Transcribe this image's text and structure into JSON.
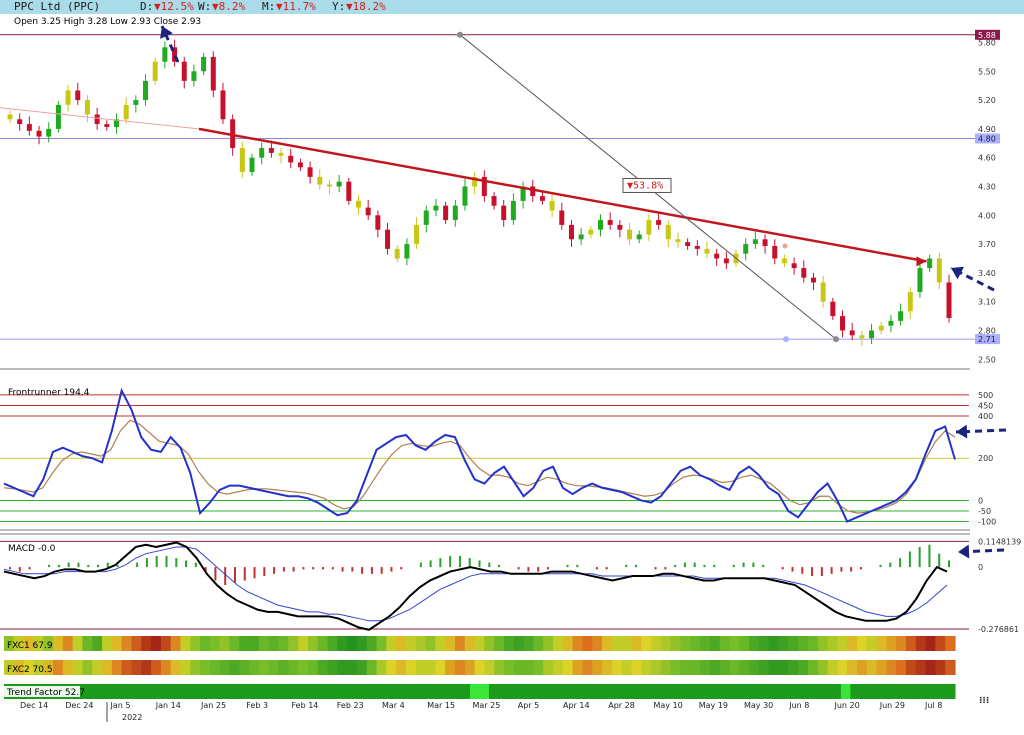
{
  "header": {
    "symbol": "PPC Ltd (PPC)",
    "day_label": "D:",
    "day_change": "▼12.5%",
    "week_label": "W:",
    "week_change": "▼8.2%",
    "month_label": "M:",
    "month_change": "▼11.7%",
    "year_label": "Y:",
    "year_change": "▼18.2%",
    "ohlc": "Open 3.25  High 3.28  Low 2.93  Close 2.93"
  },
  "colors": {
    "up": "#1faa1f",
    "down": "#c8102e",
    "neutral": "#c8c814",
    "trendline": "#c0161c",
    "blue_line": "#2232cc",
    "signal": "#b08050",
    "arrow": "#1a237e"
  },
  "chart_data": [
    {
      "type": "candlestick",
      "name": "price",
      "y_ticks": [
        2.5,
        2.8,
        3.1,
        3.4,
        3.7,
        4.0,
        4.3,
        4.6,
        4.9,
        5.2,
        5.5,
        5.8
      ],
      "ylim": [
        2.43,
        5.93
      ],
      "x_tick_labels": [
        "Dec 14",
        "Dec 24",
        "Jan 5",
        "Jan 14",
        "Jan 25",
        "Feb 3",
        "Feb 14",
        "Feb 23",
        "Mar 4",
        "Mar 15",
        "Mar 25",
        "Apr 5",
        "Apr 14",
        "Apr 28",
        "May 10",
        "May 19",
        "May 30",
        "Jun 8",
        "Jun 20",
        "Jun 29",
        "Jul 8"
      ],
      "year_label": "2022",
      "price_labels": [
        "5.88",
        "4.80",
        "2.71"
      ],
      "annotation": "▼53.8%",
      "close_path": [
        5.0,
        4.95,
        4.88,
        4.82,
        4.9,
        5.15,
        5.3,
        5.2,
        5.05,
        4.95,
        4.92,
        5.0,
        5.15,
        5.2,
        5.4,
        5.6,
        5.75,
        5.6,
        5.4,
        5.5,
        5.65,
        5.3,
        5.0,
        4.7,
        4.45,
        4.6,
        4.7,
        4.65,
        4.62,
        4.55,
        4.5,
        4.4,
        4.32,
        4.3,
        4.35,
        4.15,
        4.08,
        4.0,
        3.85,
        3.65,
        3.55,
        3.7,
        3.9,
        4.05,
        4.1,
        3.95,
        4.1,
        4.3,
        4.4,
        4.2,
        4.1,
        3.95,
        4.15,
        4.3,
        4.2,
        4.15,
        4.05,
        3.9,
        3.75,
        3.8,
        3.85,
        3.95,
        3.9,
        3.85,
        3.75,
        3.8,
        3.95,
        3.9,
        3.75,
        3.72,
        3.68,
        3.65,
        3.6,
        3.55,
        3.5,
        3.6,
        3.7,
        3.75,
        3.68,
        3.55,
        3.5,
        3.45,
        3.35,
        3.3,
        3.1,
        2.95,
        2.8,
        2.75,
        2.72,
        2.8,
        2.85,
        2.9,
        3.0,
        3.2,
        3.45,
        3.55,
        3.3,
        2.93
      ],
      "trendline": [
        [
          0.205,
          4.9
        ],
        [
          0.97,
          3.52
        ]
      ],
      "horizontal_levels": [
        5.88,
        4.8,
        2.71
      ]
    },
    {
      "type": "line",
      "name": "Frontrunner",
      "legend": "Frontrunner 194.4",
      "y_ticks": [
        500,
        450,
        400,
        200,
        0,
        -50,
        -100
      ],
      "ylim": [
        -140,
        580
      ],
      "series": [
        {
          "values": [
            80,
            60,
            40,
            20,
            100,
            230,
            250,
            230,
            210,
            200,
            180,
            330,
            520,
            430,
            300,
            240,
            230,
            300,
            250,
            130,
            -60,
            -10,
            50,
            70,
            70,
            60,
            50,
            40,
            30,
            20,
            20,
            10,
            -10,
            -40,
            -70,
            -60,
            0,
            120,
            240,
            270,
            300,
            310,
            260,
            240,
            280,
            310,
            300,
            190,
            100,
            80,
            130,
            160,
            90,
            20,
            60,
            140,
            160,
            60,
            30,
            60,
            80,
            60,
            50,
            40,
            20,
            0,
            -10,
            20,
            80,
            140,
            160,
            120,
            100,
            70,
            50,
            130,
            160,
            120,
            60,
            30,
            -50,
            -80,
            -20,
            40,
            80,
            0,
            -100,
            -80,
            -60,
            -40,
            -20,
            0,
            40,
            100,
            220,
            330,
            350,
            194
          ],
          "color": "#2232cc"
        },
        {
          "values": [
            60,
            55,
            48,
            40,
            60,
            130,
            190,
            220,
            230,
            220,
            210,
            240,
            330,
            380,
            360,
            320,
            280,
            270,
            260,
            220,
            140,
            80,
            40,
            30,
            40,
            50,
            55,
            55,
            50,
            45,
            40,
            35,
            25,
            10,
            -20,
            -40,
            -30,
            20,
            90,
            160,
            220,
            260,
            270,
            260,
            255,
            270,
            280,
            260,
            200,
            150,
            120,
            120,
            110,
            80,
            70,
            90,
            110,
            100,
            80,
            70,
            70,
            65,
            60,
            50,
            40,
            30,
            20,
            25,
            40,
            80,
            110,
            120,
            115,
            100,
            85,
            90,
            110,
            120,
            100,
            80,
            40,
            0,
            -20,
            -10,
            20,
            20,
            -20,
            -50,
            -60,
            -55,
            -45,
            -30,
            -10,
            30,
            100,
            200,
            280,
            330,
            300
          ],
          "color": "#b08050"
        }
      ],
      "horizontal_levels": [
        500,
        450,
        400,
        200,
        0,
        -50,
        -100
      ]
    },
    {
      "type": "bar",
      "name": "MACD",
      "legend": "MACD -0.0",
      "y_ticks": [
        0.1148139,
        0,
        -0.276861
      ],
      "y_tick_labels": [
        "0.1148139",
        "0",
        "-0.276861"
      ],
      "ylim": [
        -0.29,
        0.13
      ],
      "histogram": [
        -0.01,
        -0.02,
        -0.01,
        0.0,
        0.01,
        0.01,
        0.02,
        0.02,
        0.01,
        0.01,
        0.02,
        0.01,
        0.0,
        0.02,
        0.04,
        0.05,
        0.05,
        0.04,
        0.03,
        0.02,
        -0.02,
        -0.06,
        -0.08,
        -0.07,
        -0.06,
        -0.05,
        -0.04,
        -0.03,
        -0.02,
        -0.02,
        -0.01,
        -0.01,
        -0.01,
        -0.01,
        -0.02,
        -0.02,
        -0.03,
        -0.03,
        -0.03,
        -0.02,
        -0.01,
        0.0,
        0.02,
        0.03,
        0.04,
        0.05,
        0.05,
        0.04,
        0.03,
        0.02,
        0.01,
        0.0,
        -0.01,
        -0.02,
        -0.02,
        -0.01,
        0.0,
        0.01,
        0.01,
        0.0,
        -0.01,
        -0.01,
        0.0,
        0.01,
        0.01,
        0.0,
        -0.01,
        -0.01,
        0.01,
        0.02,
        0.02,
        0.01,
        0.01,
        0.0,
        0.01,
        0.02,
        0.02,
        0.01,
        0.0,
        -0.01,
        -0.02,
        -0.03,
        -0.04,
        -0.04,
        -0.03,
        -0.02,
        -0.02,
        -0.01,
        0.0,
        0.01,
        0.02,
        0.04,
        0.07,
        0.09,
        0.1,
        0.06,
        0.03
      ],
      "macd": [
        -0.02,
        -0.03,
        -0.04,
        -0.05,
        -0.04,
        -0.02,
        -0.01,
        -0.01,
        -0.02,
        -0.02,
        -0.01,
        0.01,
        0.05,
        0.09,
        0.1,
        0.09,
        0.1,
        0.11,
        0.09,
        0.04,
        -0.03,
        -0.08,
        -0.12,
        -0.15,
        -0.17,
        -0.19,
        -0.2,
        -0.2,
        -0.21,
        -0.22,
        -0.22,
        -0.22,
        -0.22,
        -0.23,
        -0.25,
        -0.27,
        -0.28,
        -0.25,
        -0.22,
        -0.18,
        -0.13,
        -0.09,
        -0.06,
        -0.04,
        -0.02,
        -0.01,
        0.0,
        -0.01,
        -0.02,
        -0.02,
        -0.03,
        -0.03,
        -0.03,
        -0.03,
        -0.02,
        -0.02,
        -0.02,
        -0.03,
        -0.04,
        -0.05,
        -0.06,
        -0.05,
        -0.04,
        -0.04,
        -0.04,
        -0.03,
        -0.03,
        -0.04,
        -0.05,
        -0.06,
        -0.06,
        -0.05,
        -0.05,
        -0.05,
        -0.05,
        -0.05,
        -0.06,
        -0.07,
        -0.08,
        -0.11,
        -0.14,
        -0.17,
        -0.2,
        -0.22,
        -0.23,
        -0.24,
        -0.24,
        -0.24,
        -0.23,
        -0.2,
        -0.14,
        -0.06,
        0.0,
        -0.02
      ],
      "signal": [
        -0.01,
        -0.02,
        -0.03,
        -0.03,
        -0.03,
        -0.03,
        -0.02,
        -0.02,
        -0.02,
        -0.02,
        -0.02,
        -0.01,
        0.01,
        0.04,
        0.06,
        0.07,
        0.08,
        0.09,
        0.09,
        0.08,
        0.04,
        0.0,
        -0.04,
        -0.08,
        -0.11,
        -0.13,
        -0.15,
        -0.17,
        -0.18,
        -0.19,
        -0.2,
        -0.2,
        -0.21,
        -0.21,
        -0.22,
        -0.23,
        -0.24,
        -0.24,
        -0.23,
        -0.21,
        -0.19,
        -0.16,
        -0.13,
        -0.1,
        -0.08,
        -0.06,
        -0.04,
        -0.03,
        -0.03,
        -0.03,
        -0.03,
        -0.03,
        -0.03,
        -0.03,
        -0.03,
        -0.03,
        -0.03,
        -0.03,
        -0.03,
        -0.04,
        -0.04,
        -0.04,
        -0.04,
        -0.04,
        -0.04,
        -0.04,
        -0.04,
        -0.04,
        -0.04,
        -0.05,
        -0.05,
        -0.05,
        -0.05,
        -0.05,
        -0.05,
        -0.05,
        -0.05,
        -0.06,
        -0.07,
        -0.08,
        -0.1,
        -0.12,
        -0.14,
        -0.16,
        -0.18,
        -0.2,
        -0.21,
        -0.22,
        -0.22,
        -0.21,
        -0.19,
        -0.16,
        -0.12,
        -0.08
      ]
    },
    {
      "type": "heatmap",
      "name": "FXC1",
      "legend": "FXC1 67.9",
      "values": [
        0.4,
        0.5,
        0.6,
        0.5,
        0.4,
        0.6,
        0.7,
        0.5,
        0.3,
        0.2,
        0.5,
        0.6,
        0.7,
        0.8,
        0.9,
        0.95,
        0.85,
        0.7,
        0.5,
        0.4,
        0.3,
        0.35,
        0.4,
        0.3,
        0.2,
        0.2,
        0.3,
        0.25,
        0.3,
        0.4,
        0.5,
        0.4,
        0.3,
        0.2,
        0.1,
        0.05,
        0.1,
        0.2,
        0.35,
        0.5,
        0.6,
        0.5,
        0.45,
        0.4,
        0.5,
        0.6,
        0.7,
        0.6,
        0.5,
        0.4,
        0.3,
        0.2,
        0.15,
        0.2,
        0.3,
        0.4,
        0.5,
        0.6,
        0.7,
        0.75,
        0.7,
        0.6,
        0.5,
        0.5,
        0.6,
        0.55,
        0.5,
        0.45,
        0.4,
        0.35,
        0.3,
        0.25,
        0.2,
        0.3,
        0.35,
        0.3,
        0.2,
        0.15,
        0.1,
        0.15,
        0.2,
        0.25,
        0.3,
        0.4,
        0.45,
        0.5,
        0.6,
        0.55,
        0.5,
        0.6,
        0.65,
        0.7,
        0.8,
        0.9,
        0.95,
        0.85,
        0.75
      ]
    },
    {
      "type": "heatmap",
      "name": "FXC2",
      "legend": "FXC2 70.5",
      "values": [
        0.5,
        0.6,
        0.55,
        0.5,
        0.6,
        0.7,
        0.6,
        0.5,
        0.4,
        0.5,
        0.6,
        0.7,
        0.8,
        0.85,
        0.9,
        0.8,
        0.7,
        0.6,
        0.5,
        0.4,
        0.35,
        0.3,
        0.25,
        0.2,
        0.25,
        0.3,
        0.35,
        0.3,
        0.25,
        0.3,
        0.35,
        0.3,
        0.2,
        0.15,
        0.1,
        0.1,
        0.15,
        0.3,
        0.45,
        0.55,
        0.6,
        0.55,
        0.5,
        0.5,
        0.55,
        0.65,
        0.7,
        0.65,
        0.55,
        0.5,
        0.4,
        0.35,
        0.3,
        0.3,
        0.35,
        0.45,
        0.5,
        0.55,
        0.65,
        0.7,
        0.65,
        0.6,
        0.55,
        0.5,
        0.55,
        0.5,
        0.45,
        0.4,
        0.35,
        0.3,
        0.3,
        0.25,
        0.2,
        0.25,
        0.3,
        0.25,
        0.2,
        0.15,
        0.1,
        0.1,
        0.15,
        0.2,
        0.3,
        0.4,
        0.5,
        0.55,
        0.6,
        0.65,
        0.6,
        0.65,
        0.7,
        0.75,
        0.85,
        0.9,
        0.95,
        0.9,
        0.8
      ]
    },
    {
      "type": "heatmap",
      "name": "Trend Factor",
      "legend": "Trend Factor 52.7",
      "segments": [
        {
          "from": 0.0,
          "to": 0.49,
          "color": "#1b9a1b"
        },
        {
          "from": 0.49,
          "to": 0.51,
          "color": "#39e639"
        },
        {
          "from": 0.51,
          "to": 0.88,
          "color": "#1b9a1b"
        },
        {
          "from": 0.88,
          "to": 0.89,
          "color": "#39e639"
        },
        {
          "from": 0.89,
          "to": 0.95,
          "color": "#1b9a1b"
        },
        {
          "from": 0.95,
          "to": 1.0,
          "color": "#1b9a1b"
        }
      ]
    }
  ]
}
